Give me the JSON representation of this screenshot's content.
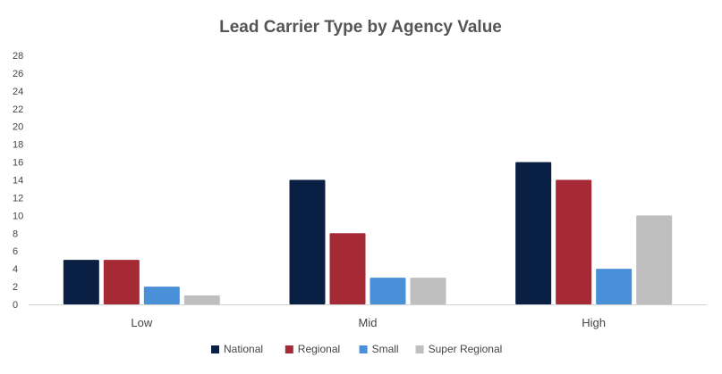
{
  "chart_data": {
    "type": "bar",
    "title": "Lead Carrier Type by Agency Value",
    "xlabel": "",
    "ylabel": "",
    "categories": [
      "Low",
      "Mid",
      "High"
    ],
    "ylim": [
      0,
      28
    ],
    "yticks": [
      0,
      2,
      4,
      6,
      8,
      10,
      12,
      14,
      16,
      18,
      20,
      22,
      24,
      26,
      28
    ],
    "grid": false,
    "legend_position": "bottom",
    "series": [
      {
        "name": "National",
        "color": "#0a1f44",
        "values": [
          5,
          14,
          16
        ]
      },
      {
        "name": "Regional",
        "color": "#a52a36",
        "values": [
          5,
          8,
          14
        ]
      },
      {
        "name": "Small",
        "color": "#4a90d9",
        "values": [
          2,
          3,
          4
        ]
      },
      {
        "name": "Super Regional",
        "color": "#bfbfbf",
        "values": [
          1,
          3,
          10
        ]
      }
    ]
  }
}
